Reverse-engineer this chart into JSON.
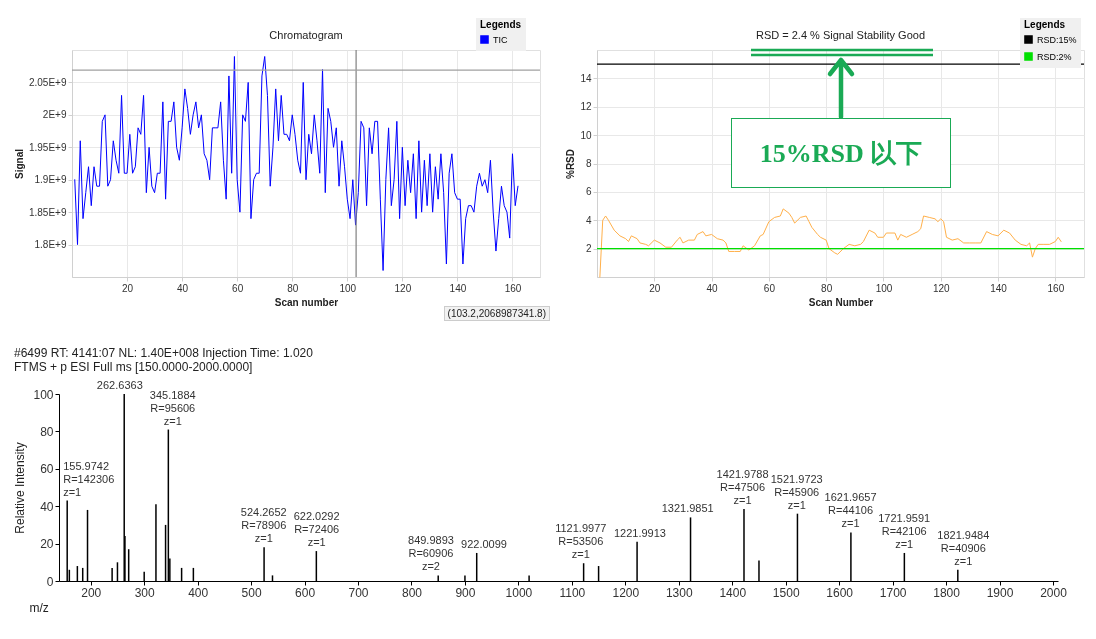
{
  "chart_data": [
    {
      "type": "line",
      "title": "Chromatogram",
      "xlabel": "Scan number",
      "ylabel": "Signal",
      "legend_title": "Legends",
      "legend": "top right",
      "grid": true,
      "x": [
        1,
        2,
        3,
        4,
        5,
        6,
        7,
        8,
        9,
        10,
        11,
        12,
        13,
        14,
        15,
        16,
        17,
        18,
        19,
        20,
        21,
        22,
        23,
        24,
        25,
        26,
        27,
        28,
        29,
        30,
        31,
        32,
        33,
        34,
        35,
        36,
        37,
        38,
        39,
        40,
        41,
        42,
        43,
        44,
        45,
        46,
        47,
        48,
        49,
        50,
        51,
        52,
        53,
        54,
        55,
        56,
        57,
        58,
        59,
        60,
        61,
        62,
        63,
        64,
        65,
        66,
        67,
        68,
        69,
        70,
        71,
        72,
        73,
        74,
        75,
        76,
        77,
        78,
        79,
        80,
        81,
        82,
        83,
        84,
        85,
        86,
        87,
        88,
        89,
        90,
        91,
        92,
        93,
        94,
        95,
        96,
        97,
        98,
        99,
        100,
        101,
        102,
        103,
        104,
        105,
        106,
        107,
        108,
        109,
        110,
        111,
        112,
        113,
        114,
        115,
        116,
        117,
        118,
        119,
        120,
        121,
        122,
        123,
        124,
        125,
        126,
        127,
        128,
        129,
        130,
        131,
        132,
        133,
        134,
        135,
        136,
        137,
        138,
        139,
        140,
        141,
        142,
        143,
        144,
        145,
        146,
        147,
        148,
        149,
        150,
        151,
        152,
        153,
        154,
        155,
        156,
        157,
        158,
        159,
        160,
        161,
        162
      ],
      "series": [
        {
          "name": "TIC",
          "color": "#0000ff",
          "values": [
            1900000000.0,
            1800000000.0,
            1960000000.0,
            1840000000.0,
            1880000000.0,
            1920000000.0,
            1860000000.0,
            1920000000.0,
            1890000000.0,
            1890000000.0,
            1990000000.0,
            2000000000.0,
            1890000000.0,
            1900000000.0,
            1960000000.0,
            1930000000.0,
            1910000000.0,
            2030000000.0,
            1910000000.0,
            1910000000.0,
            1970000000.0,
            1910000000.0,
            1920000000.0,
            1980000000.0,
            1970000000.0,
            2030000000.0,
            1880000000.0,
            1950000000.0,
            1890000000.0,
            1880000000.0,
            1910000000.0,
            1910000000.0,
            2020000000.0,
            1870000000.0,
            1990000000.0,
            1990000000.0,
            2020000000.0,
            1950000000.0,
            1930000000.0,
            1980000000.0,
            2040000000.0,
            2010000000.0,
            1970000000.0,
            2000000000.0,
            2020000000.0,
            1980000000.0,
            2000000000.0,
            1940000000.0,
            1930000000.0,
            1900000000.0,
            1980000000.0,
            1980000000.0,
            1980000000.0,
            2020000000.0,
            1930000000.0,
            1870000000.0,
            2060000000.0,
            1910000000.0,
            2090000000.0,
            1900000000.0,
            1850000000.0,
            2000000000.0,
            1990000000.0,
            2050000000.0,
            1840000000.0,
            1900000000.0,
            1910000000.0,
            1910000000.0,
            2060000000.0,
            2090000000.0,
            2030000000.0,
            1890000000.0,
            1950000000.0,
            2040000000.0,
            1960000000.0,
            2030000000.0,
            1970000000.0,
            1970000000.0,
            1960000000.0,
            2000000000.0,
            1970000000.0,
            1930000000.0,
            1910000000.0,
            2050000000.0,
            1900000000.0,
            1970000000.0,
            1940000000.0,
            2000000000.0,
            1960000000.0,
            1910000000.0,
            2070000000.0,
            1880000000.0,
            2010000000.0,
            1990000000.0,
            1950000000.0,
            1980000000.0,
            1890000000.0,
            1960000000.0,
            1920000000.0,
            1870000000.0,
            1840000000.0,
            1900000000.0,
            1830000000.0,
            1880000000.0,
            1990000000.0,
            1980000000.0,
            1860000000.0,
            1980000000.0,
            1940000000.0,
            1990000000.0,
            1990000000.0,
            1870000000.0,
            1760000000.0,
            1900000000.0,
            1980000000.0,
            1860000000.0,
            1900000000.0,
            1990000000.0,
            1840000000.0,
            1950000000.0,
            1860000000.0,
            1930000000.0,
            1880000000.0,
            1940000000.0,
            1840000000.0,
            1960000000.0,
            1850000000.0,
            1930000000.0,
            1860000000.0,
            1940000000.0,
            1850000000.0,
            1920000000.0,
            1870000000.0,
            1940000000.0,
            1880000000.0,
            1770000000.0,
            1910000000.0,
            1940000000.0,
            1880000000.0,
            1870000000.0,
            1870000000.0,
            1770000000.0,
            1840000000.0,
            1860000000.0,
            1860000000.0,
            1850000000.0,
            1890000000.0,
            1910000000.0,
            1890000000.0,
            1900000000.0,
            1880000000.0,
            1930000000.0,
            1850000000.0,
            1790000000.0,
            1840000000.0,
            1890000000.0,
            1860000000.0,
            1850000000.0,
            1810000000.0,
            1940000000.0,
            1860000000.0,
            1890000000.0
          ]
        }
      ],
      "xlim": [
        0,
        170
      ],
      "xticks": [
        20,
        40,
        60,
        80,
        100,
        120,
        140,
        160
      ],
      "ylim": [
        1750000000.0,
        2100000000.0
      ],
      "yticks": [
        {
          "value": 1800000000.0,
          "label": "1.8E+9"
        },
        {
          "value": 1850000000.0,
          "label": "1.85E+9"
        },
        {
          "value": 1900000000.0,
          "label": "1.9E+9"
        },
        {
          "value": 1950000000.0,
          "label": "1.95E+9"
        },
        {
          "value": 2000000000.0,
          "label": "2E+9"
        },
        {
          "value": 2050000000.0,
          "label": "2.05E+9"
        }
      ],
      "ref_lines": [
        {
          "axis": "x",
          "value": 103.2,
          "color": "#808080"
        },
        {
          "axis": "y",
          "value": 2068987341.8,
          "color": "#a0a0a0"
        }
      ],
      "annotations": [
        "(103.2,2068987341.8)"
      ]
    },
    {
      "type": "line",
      "title": "RSD = 2.4 % Signal Stability Good",
      "xlabel": "Scan Number",
      "ylabel": "%RSD",
      "legend_title": "Legends",
      "legend": "top right",
      "grid": true,
      "series": [
        {
          "color": "#ffb04a",
          "x": [
            1,
            2,
            3,
            4,
            6,
            8,
            10,
            11,
            12,
            14,
            15,
            17,
            18,
            20,
            22,
            24,
            26,
            28,
            29,
            30,
            32,
            34,
            35,
            37,
            38,
            40,
            42,
            44,
            45,
            46,
            48,
            50,
            51,
            53,
            55,
            57,
            58,
            60,
            62,
            64,
            65,
            67,
            68,
            69,
            71,
            73,
            74,
            75,
            77,
            78,
            80,
            81,
            83,
            84,
            86,
            88,
            90,
            92,
            93,
            95,
            97,
            98,
            100,
            101,
            104,
            105,
            106,
            108,
            110,
            112,
            113,
            114,
            116,
            118,
            119,
            120,
            121,
            122,
            124,
            126,
            128,
            130,
            132,
            134,
            136,
            138,
            140,
            142,
            144,
            146,
            148,
            150,
            151,
            152,
            153,
            154,
            156,
            158,
            160,
            161,
            162
          ],
          "values": [
            0,
            4.0,
            4.3,
            4.0,
            3.3,
            2.9,
            2.7,
            2.5,
            2.9,
            2.7,
            2.4,
            2.3,
            2.2,
            2.6,
            2.4,
            2.1,
            2.1,
            2.6,
            2.8,
            2.4,
            2.6,
            2.6,
            3.0,
            3.2,
            2.9,
            3.0,
            2.7,
            2.6,
            2.4,
            1.8,
            1.8,
            1.8,
            2.2,
            1.9,
            2.2,
            2.9,
            3.0,
            3.9,
            4.2,
            4.3,
            4.8,
            4.5,
            4.2,
            3.8,
            4.2,
            4.3,
            3.9,
            3.5,
            3.0,
            2.8,
            2.6,
            2.0,
            1.7,
            1.6,
            2.0,
            2.3,
            2.2,
            2.3,
            2.5,
            3.3,
            3.1,
            2.8,
            2.8,
            3.1,
            3.1,
            2.6,
            3.0,
            2.8,
            3.0,
            3.2,
            3.4,
            4.3,
            4.2,
            4.1,
            3.9,
            4.1,
            3.9,
            2.8,
            2.6,
            2.7,
            2.4,
            2.4,
            2.4,
            2.4,
            3.2,
            3.0,
            2.9,
            3.3,
            3.1,
            2.6,
            2.3,
            2.2,
            2.4,
            1.4,
            2.0,
            2.3,
            2.3,
            2.3,
            2.5,
            2.8,
            2.5
          ]
        }
      ],
      "xlim": [
        0,
        170
      ],
      "xticks": [
        20,
        40,
        60,
        80,
        100,
        120,
        140,
        160
      ],
      "ylim": [
        0,
        16
      ],
      "yticks": [
        2,
        4,
        6,
        8,
        10,
        12,
        14
      ],
      "ref_lines": [
        {
          "axis": "y",
          "value": 15,
          "label": "RSD:15%",
          "color": "#000000"
        },
        {
          "axis": "y",
          "value": 2,
          "label": "RSD:2%",
          "color": "#00e000"
        }
      ],
      "annotations": [
        "15%RSD 以下"
      ]
    },
    {
      "type": "bar",
      "title": "#6499 RT: 4141:07 NL: 1.40E+008 Injection Time: 1.020",
      "subtitle": "FTMS + p ESI Full ms [150.0000-2000.0000]",
      "xlabel": "m/z",
      "ylabel": "Relative Intensity",
      "color": "#000000",
      "x": [
        155.9742,
        160,
        175,
        185,
        194,
        240,
        250,
        262.6363,
        264,
        271,
        300,
        322,
        340,
        345.1884,
        348,
        370,
        392,
        524.2652,
        540,
        622.0292,
        849.9893,
        900,
        922.0099,
        1020,
        1121.9977,
        1150,
        1221.9913,
        1321.9851,
        1421.9788,
        1450,
        1521.9723,
        1621.9657,
        1721.9591,
        1821.9484
      ],
      "values": [
        43,
        6,
        8,
        7,
        38,
        7,
        10,
        100,
        24,
        17,
        5,
        41,
        30,
        81,
        12,
        7,
        7,
        18,
        3,
        16,
        3,
        3,
        15,
        3,
        9.5,
        8,
        21,
        34,
        38.5,
        11,
        36,
        26,
        15,
        6
      ],
      "xlim": [
        150,
        2000
      ],
      "xticks": [
        200,
        300,
        400,
        500,
        600,
        700,
        800,
        900,
        1000,
        1100,
        1200,
        1300,
        1400,
        1500,
        1600,
        1700,
        1800,
        1900,
        2000
      ],
      "ylim": [
        0,
        100
      ],
      "yticks": [
        0,
        20,
        40,
        60,
        80,
        100
      ],
      "annotations": [
        {
          "text": "155.9742\nR=142306\nz=1",
          "x": 155.9742,
          "y": 43
        },
        {
          "text": "262.6363",
          "x": 262.6363,
          "y": 100
        },
        {
          "text": "345.1884\nR=95606\nz=1",
          "x": 345.1884,
          "y": 81
        },
        {
          "text": "524.2652\nR=78906\nz=1",
          "x": 524.2652,
          "y": 18
        },
        {
          "text": "622.0292\nR=72406\nz=1",
          "x": 622.0292,
          "y": 16
        },
        {
          "text": "849.9893\nR=60906\nz=2",
          "x": 849.9893,
          "y": 3
        },
        {
          "text": "922.0099",
          "x": 922.0099,
          "y": 15
        },
        {
          "text": "1121.9977\nR=53506\nz=1",
          "x": 1121.9977,
          "y": 9.5
        },
        {
          "text": "1221.9913",
          "x": 1221.9913,
          "y": 21
        },
        {
          "text": "1321.9851",
          "x": 1321.9851,
          "y": 34
        },
        {
          "text": "1421.9788\nR=47506\nz=1",
          "x": 1421.9788,
          "y": 38.5
        },
        {
          "text": "1521.9723\nR=45906\nz=1",
          "x": 1521.9723,
          "y": 36
        },
        {
          "text": "1621.9657\nR=44106\nz=1",
          "x": 1621.9657,
          "y": 26
        },
        {
          "text": "1721.9591\nR=42106\nz=1",
          "x": 1721.9591,
          "y": 15
        },
        {
          "text": "1821.9484\nR=40906\nz=1",
          "x": 1821.9484,
          "y": 6
        }
      ]
    }
  ]
}
